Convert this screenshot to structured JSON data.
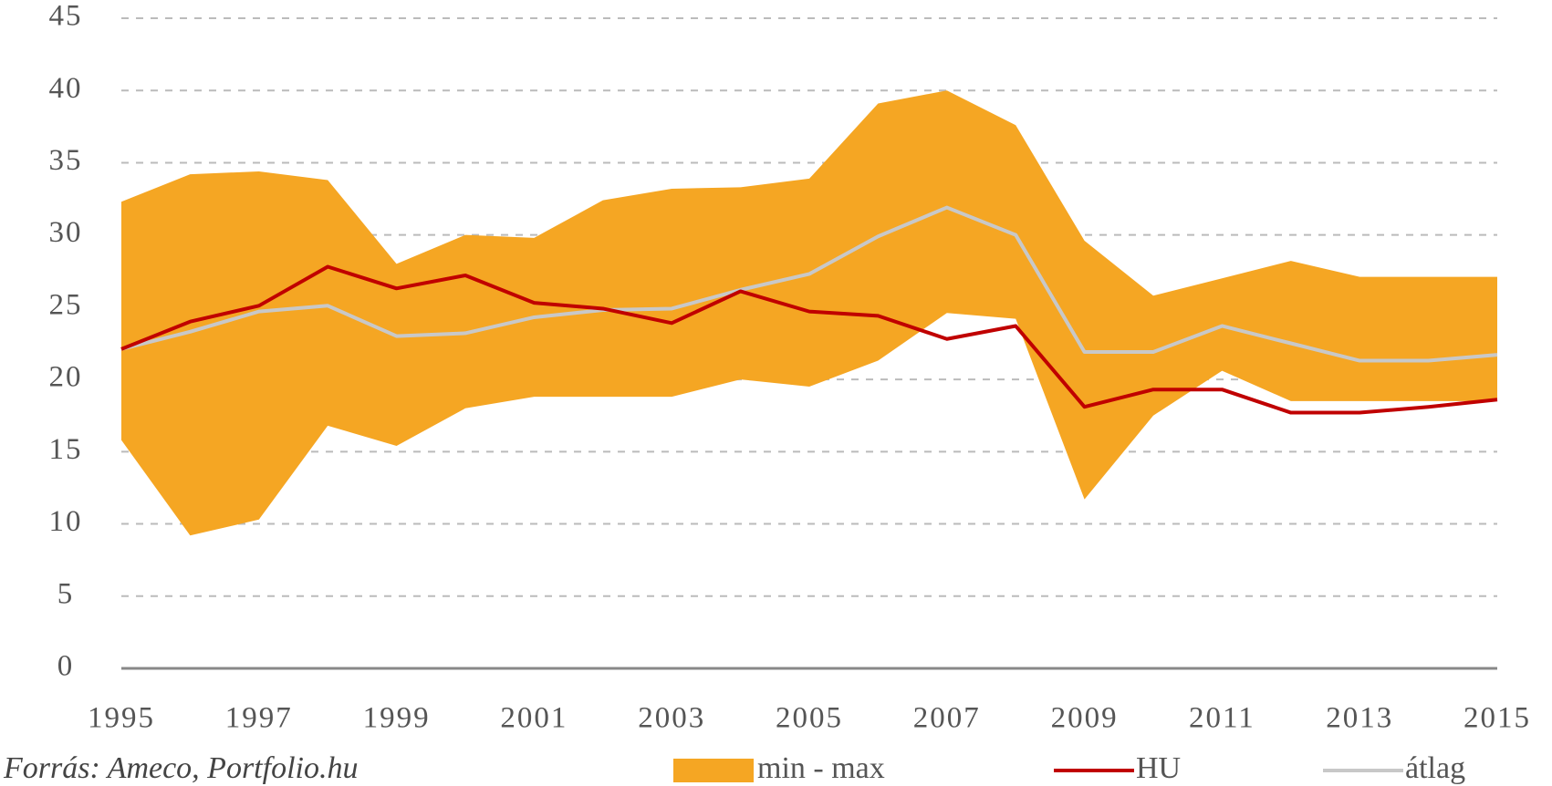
{
  "chart_data": {
    "type": "line",
    "x": [
      1995,
      1996,
      1997,
      1998,
      1999,
      2000,
      2001,
      2002,
      2003,
      2004,
      2005,
      2006,
      2007,
      2008,
      2009,
      2010,
      2011,
      2012,
      2013,
      2014,
      2015
    ],
    "xlim": [
      1995,
      2015
    ],
    "xticks": [
      1995,
      1997,
      1999,
      2001,
      2003,
      2005,
      2007,
      2009,
      2011,
      2013,
      2015
    ],
    "ylim": [
      0,
      45
    ],
    "yticks": [
      0,
      5,
      10,
      15,
      20,
      25,
      30,
      35,
      40,
      45
    ],
    "grid": true,
    "band": {
      "name": "min - max",
      "color": "#f5a623",
      "max": [
        32.3,
        34.2,
        34.4,
        33.8,
        28.0,
        30.0,
        29.8,
        32.4,
        33.2,
        33.3,
        33.9,
        39.1,
        40.0,
        37.6,
        29.6,
        25.8,
        27.0,
        28.2,
        27.1,
        27.1,
        27.1
      ],
      "min": [
        15.8,
        9.2,
        10.3,
        16.8,
        15.4,
        18.0,
        18.8,
        18.8,
        18.8,
        20.0,
        19.5,
        21.3,
        24.6,
        24.2,
        11.7,
        17.5,
        20.6,
        18.5,
        18.5,
        18.5,
        18.5
      ]
    },
    "series": [
      {
        "name": "HU",
        "color": "#c00000",
        "values": [
          22.1,
          24.0,
          25.1,
          27.8,
          26.3,
          27.2,
          25.3,
          24.9,
          23.9,
          26.1,
          24.7,
          24.4,
          22.8,
          23.7,
          18.1,
          19.3,
          19.3,
          17.7,
          17.7,
          18.1,
          18.6
        ]
      },
      {
        "name": "átlag",
        "color": "#c8c8c8",
        "values": [
          22.1,
          23.3,
          24.7,
          25.1,
          23.0,
          23.2,
          24.3,
          24.8,
          24.9,
          26.2,
          27.3,
          29.9,
          31.9,
          30.0,
          21.9,
          21.9,
          23.7,
          22.5,
          21.3,
          21.3,
          21.7
        ]
      }
    ],
    "source": "Forrás: Ameco, Portfolio.hu"
  }
}
